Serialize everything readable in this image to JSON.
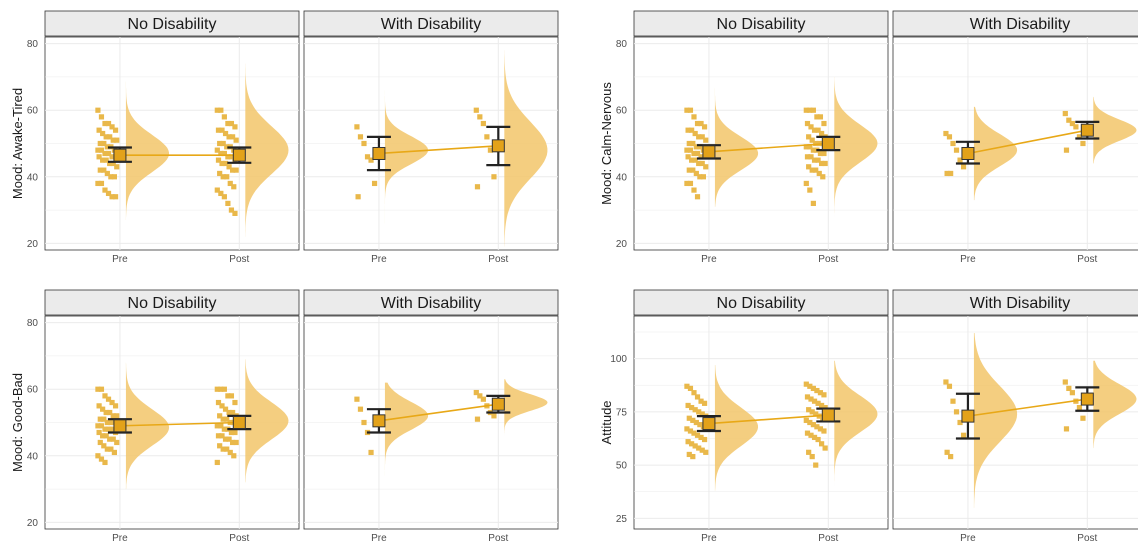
{
  "colors": {
    "accent": "#E8A817",
    "violin": "#F2C66A",
    "points": "#E9B84A",
    "mean_fill": "#E3A21A",
    "error_bar": "#222222",
    "strip_bg": "#EBEBEB",
    "grid": "#EBEBEB"
  },
  "chart_data": [
    {
      "type": "raincloud",
      "ylabel": "Mood: Awake-Tired",
      "ylim": [
        18,
        82
      ],
      "yticks": [
        20,
        40,
        60,
        80
      ],
      "xcategories": [
        "Pre",
        "Post"
      ],
      "facets": [
        {
          "label": "No Disability",
          "means": [
            46.5,
            46.5
          ],
          "ci": [
            [
              44.5,
              48.8
            ],
            [
              44.2,
              48.8
            ]
          ],
          "points": [
            [
              60,
              58,
              56,
              56,
              55,
              54,
              54,
              53,
              52,
              52,
              51,
              51,
              50,
              50,
              49,
              49,
              48,
              48,
              48,
              47,
              47,
              46,
              46,
              46,
              45,
              45,
              44,
              44,
              43,
              42,
              42,
              41,
              40,
              40,
              38,
              38,
              36,
              35,
              34,
              34
            ],
            [
              60,
              60,
              58,
              56,
              56,
              55,
              54,
              54,
              53,
              52,
              52,
              51,
              50,
              50,
              49,
              49,
              48,
              48,
              47,
              47,
              46,
              46,
              45,
              45,
              44,
              44,
              43,
              42,
              42,
              41,
              40,
              40,
              38,
              37,
              36,
              35,
              34,
              32,
              30,
              29
            ]
          ],
          "density": [
            {
              "mu": 47,
              "sd": 5.6,
              "min": 27,
              "max": 69
            },
            {
              "mu": 48,
              "sd": 7.2,
              "min": 22,
              "max": 74
            }
          ]
        },
        {
          "label": "With Disability",
          "means": [
            47,
            49.3
          ],
          "ci": [
            [
              42,
              52
            ],
            [
              43.5,
              55
            ]
          ],
          "points": [
            [
              55,
              52,
              50,
              46,
              45,
              38,
              34
            ],
            [
              60,
              58,
              56,
              52,
              48,
              40,
              37
            ]
          ],
          "density": [
            {
              "mu": 48,
              "sd": 4.2,
              "min": 26,
              "max": 66
            },
            {
              "mu": 48,
              "sd": 8.5,
              "min": 19,
              "max": 78
            }
          ]
        }
      ]
    },
    {
      "type": "raincloud",
      "ylabel": "Mood: Calm-Nervous",
      "ylim": [
        18,
        82
      ],
      "yticks": [
        20,
        40,
        60,
        80
      ],
      "xcategories": [
        "Pre",
        "Post"
      ],
      "facets": [
        {
          "label": "No Disability",
          "means": [
            47.5,
            50
          ],
          "ci": [
            [
              45.5,
              49.5
            ],
            [
              48,
              52
            ]
          ],
          "points": [
            [
              60,
              60,
              58,
              56,
              56,
              55,
              54,
              54,
              53,
              52,
              52,
              51,
              50,
              50,
              49,
              49,
              48,
              48,
              48,
              47,
              47,
              46,
              46,
              46,
              45,
              45,
              44,
              44,
              43,
              42,
              42,
              41,
              40,
              40,
              38,
              38,
              36,
              34
            ],
            [
              60,
              60,
              60,
              58,
              58,
              56,
              56,
              55,
              54,
              54,
              53,
              52,
              52,
              51,
              50,
              50,
              50,
              49,
              49,
              48,
              48,
              47,
              47,
              46,
              46,
              45,
              45,
              44,
              44,
              43,
              42,
              42,
              41,
              40,
              38,
              36,
              32
            ]
          ],
          "density": [
            {
              "mu": 47,
              "sd": 5,
              "min": 31,
              "max": 67
            },
            {
              "mu": 50,
              "sd": 5.6,
              "min": 28,
              "max": 70
            }
          ]
        },
        {
          "label": "With Disability",
          "means": [
            47,
            54
          ],
          "ci": [
            [
              44,
              50.5
            ],
            [
              51.5,
              56.5
            ]
          ],
          "points": [
            [
              53,
              52,
              50,
              48,
              45,
              43,
              41,
              41
            ],
            [
              59,
              57,
              56,
              55,
              52,
              50,
              48
            ]
          ],
          "density": [
            {
              "mu": 48,
              "sd": 4.8,
              "min": 33,
              "max": 61
            },
            {
              "mu": 54,
              "sd": 3.2,
              "min": 44,
              "max": 64
            }
          ]
        }
      ]
    },
    {
      "type": "raincloud",
      "ylabel": "Mood: Good-Bad",
      "ylim": [
        18,
        82
      ],
      "yticks": [
        20,
        40,
        60,
        80
      ],
      "xcategories": [
        "Pre",
        "Post"
      ],
      "facets": [
        {
          "label": "No Disability",
          "means": [
            49,
            50
          ],
          "ci": [
            [
              47,
              51
            ],
            [
              48,
              52
            ]
          ],
          "points": [
            [
              60,
              60,
              58,
              57,
              56,
              55,
              55,
              54,
              53,
              53,
              52,
              52,
              51,
              51,
              50,
              50,
              50,
              49,
              49,
              48,
              48,
              48,
              47,
              47,
              46,
              46,
              45,
              45,
              44,
              44,
              43,
              42,
              42,
              41,
              40,
              39,
              38
            ],
            [
              60,
              60,
              60,
              58,
              58,
              56,
              56,
              55,
              54,
              53,
              53,
              52,
              52,
              51,
              51,
              50,
              50,
              49,
              49,
              48,
              48,
              47,
              47,
              46,
              46,
              45,
              45,
              44,
              44,
              43,
              42,
              42,
              41,
              40,
              38
            ]
          ],
          "density": [
            {
              "mu": 48.5,
              "sd": 5.5,
              "min": 30,
              "max": 68
            },
            {
              "mu": 50.5,
              "sd": 5.6,
              "min": 32,
              "max": 69
            }
          ]
        },
        {
          "label": "With Disability",
          "means": [
            50.5,
            55.5
          ],
          "ci": [
            [
              47,
              54
            ],
            [
              53,
              58
            ]
          ],
          "points": [
            [
              57,
              54,
              50,
              47,
              41
            ],
            [
              59,
              58,
              57,
              55,
              53,
              52,
              51
            ]
          ],
          "density": [
            {
              "mu": 52,
              "sd": 4.2,
              "min": 34,
              "max": 62
            },
            {
              "mu": 56,
              "sd": 2.5,
              "min": 46,
              "max": 63
            }
          ]
        }
      ]
    },
    {
      "type": "raincloud",
      "ylabel": "Attitude",
      "ylim": [
        20,
        120
      ],
      "yticks": [
        25,
        50,
        75,
        100
      ],
      "xcategories": [
        "Pre",
        "Post"
      ],
      "facets": [
        {
          "label": "No Disability",
          "means": [
            69.5,
            73.5
          ],
          "ci": [
            [
              66,
              73
            ],
            [
              70.5,
              76.5
            ]
          ],
          "points": [
            [
              87,
              86,
              84,
              82,
              80,
              79,
              78,
              77,
              76,
              75,
              74,
              73,
              72,
              71,
              70,
              69,
              68,
              67,
              66,
              65,
              64,
              63,
              62,
              61,
              60,
              59,
              58,
              57,
              56,
              55,
              54
            ],
            [
              88,
              87,
              86,
              85,
              84,
              83,
              82,
              81,
              80,
              79,
              78,
              77,
              76,
              75,
              74,
              73,
              72,
              71,
              70,
              69,
              68,
              67,
              66,
              65,
              64,
              63,
              62,
              60,
              58,
              56,
              54,
              50
            ]
          ],
          "density": [
            {
              "mu": 68,
              "sd": 9,
              "min": 38,
              "max": 97
            },
            {
              "mu": 74,
              "sd": 8.5,
              "min": 40,
              "max": 99
            }
          ]
        },
        {
          "label": "With Disability",
          "means": [
            73,
            81
          ],
          "ci": [
            [
              62.5,
              83.5
            ],
            [
              75.5,
              86.5
            ]
          ],
          "points": [
            [
              89,
              87,
              80,
              75,
              70,
              64,
              56,
              54
            ],
            [
              89,
              86,
              84,
              80,
              77,
              72,
              67
            ]
          ],
          "density": [
            {
              "mu": 74,
              "sd": 13,
              "min": 30,
              "max": 112
            },
            {
              "mu": 81,
              "sd": 7,
              "min": 58,
              "max": 99
            }
          ]
        }
      ]
    }
  ]
}
